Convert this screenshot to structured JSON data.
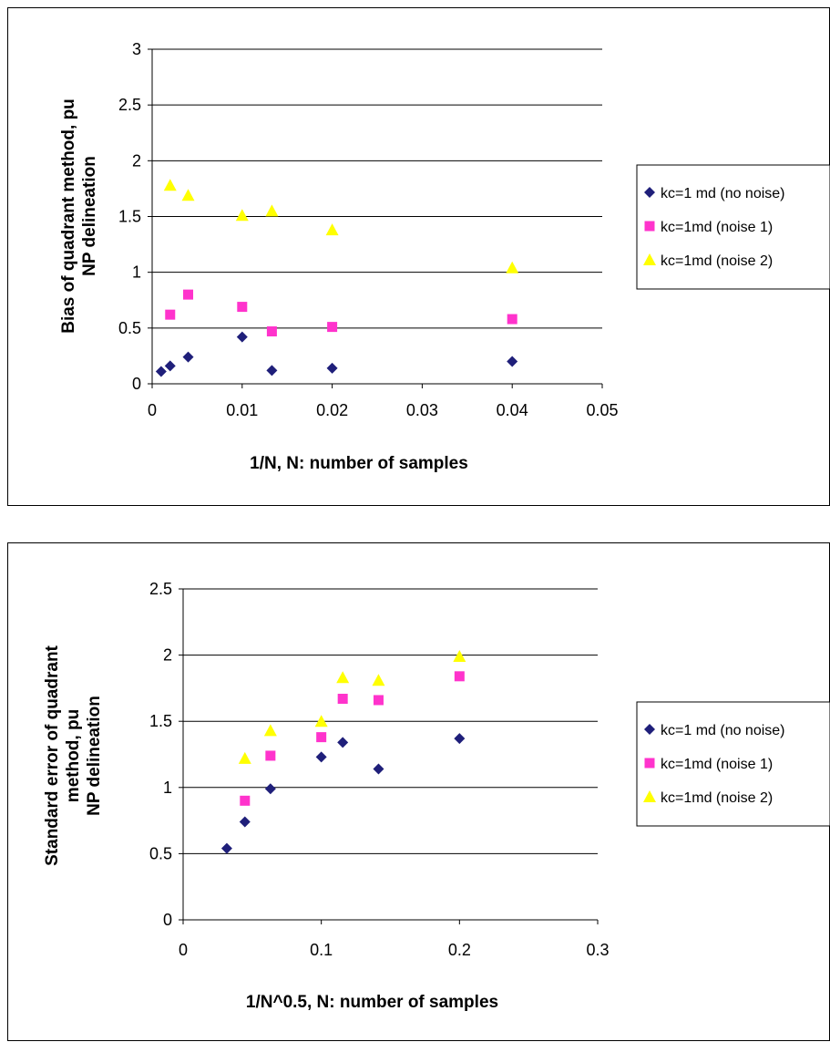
{
  "chart_data": [
    {
      "type": "scatter",
      "title": "",
      "xlabel": "1/N, N: number of samples",
      "ylabel": [
        "Bias of quadrant method, pu",
        "NP delineation"
      ],
      "xlim": [
        0,
        0.05
      ],
      "ylim": [
        0,
        3
      ],
      "xticks": [
        0,
        0.01,
        0.02,
        0.03,
        0.04,
        0.05
      ],
      "xtick_labels": [
        "0",
        "0.01",
        "0.02",
        "0.03",
        "0.04",
        "0.05"
      ],
      "yticks": [
        0,
        0.5,
        1,
        1.5,
        2,
        2.5,
        3
      ],
      "ytick_labels": [
        "0",
        "0.5",
        "1",
        "1.5",
        "2",
        "2.5",
        "3"
      ],
      "grid": "horizontal",
      "legend_position": "right",
      "series": [
        {
          "name": "kc=1 md (no noise)",
          "marker": "diamond",
          "color": "#1f1f7a",
          "points": [
            [
              0.001,
              0.11
            ],
            [
              0.002,
              0.16
            ],
            [
              0.004,
              0.24
            ],
            [
              0.01,
              0.42
            ],
            [
              0.0133,
              0.12
            ],
            [
              0.02,
              0.14
            ],
            [
              0.04,
              0.2
            ]
          ]
        },
        {
          "name": "kc=1md (noise 1)",
          "marker": "square",
          "color": "#ff33cc",
          "points": [
            [
              0.002,
              0.62
            ],
            [
              0.004,
              0.8
            ],
            [
              0.01,
              0.69
            ],
            [
              0.0133,
              0.47
            ],
            [
              0.02,
              0.51
            ],
            [
              0.04,
              0.58
            ]
          ]
        },
        {
          "name": "kc=1md (noise 2)",
          "marker": "triangle",
          "color": "#ffff00",
          "points": [
            [
              0.002,
              1.78
            ],
            [
              0.004,
              1.69
            ],
            [
              0.01,
              1.51
            ],
            [
              0.0133,
              1.55
            ],
            [
              0.02,
              1.38
            ],
            [
              0.04,
              1.04
            ]
          ]
        }
      ]
    },
    {
      "type": "scatter",
      "title": "",
      "xlabel": "1/N^0.5, N: number of samples",
      "ylabel": [
        "Standard error of quadrant",
        "method, pu",
        "NP delineation"
      ],
      "xlim": [
        0,
        0.3
      ],
      "ylim": [
        0,
        2.5
      ],
      "xticks": [
        0,
        0.1,
        0.2,
        0.3
      ],
      "xtick_labels": [
        "0",
        "0.1",
        "0.2",
        "0.3"
      ],
      "yticks": [
        0,
        0.5,
        1,
        1.5,
        2,
        2.5
      ],
      "ytick_labels": [
        "0",
        "0.5",
        "1",
        "1.5",
        "2",
        "2.5"
      ],
      "grid": "horizontal",
      "legend_position": "right",
      "series": [
        {
          "name": "kc=1 md (no noise)",
          "marker": "diamond",
          "color": "#1f1f7a",
          "points": [
            [
              0.0316,
              0.54
            ],
            [
              0.0447,
              0.74
            ],
            [
              0.0632,
              0.99
            ],
            [
              0.1,
              1.23
            ],
            [
              0.1155,
              1.34
            ],
            [
              0.1414,
              1.14
            ],
            [
              0.2,
              1.37
            ]
          ]
        },
        {
          "name": "kc=1md (noise 1)",
          "marker": "square",
          "color": "#ff33cc",
          "points": [
            [
              0.0447,
              0.9
            ],
            [
              0.0632,
              1.24
            ],
            [
              0.1,
              1.38
            ],
            [
              0.1155,
              1.67
            ],
            [
              0.1414,
              1.66
            ],
            [
              0.2,
              1.84
            ]
          ]
        },
        {
          "name": "kc=1md (noise 2)",
          "marker": "triangle",
          "color": "#ffff00",
          "points": [
            [
              0.0447,
              1.22
            ],
            [
              0.0632,
              1.43
            ],
            [
              0.1,
              1.5
            ],
            [
              0.1155,
              1.83
            ],
            [
              0.1414,
              1.81
            ],
            [
              0.2,
              1.99
            ]
          ]
        }
      ]
    }
  ]
}
